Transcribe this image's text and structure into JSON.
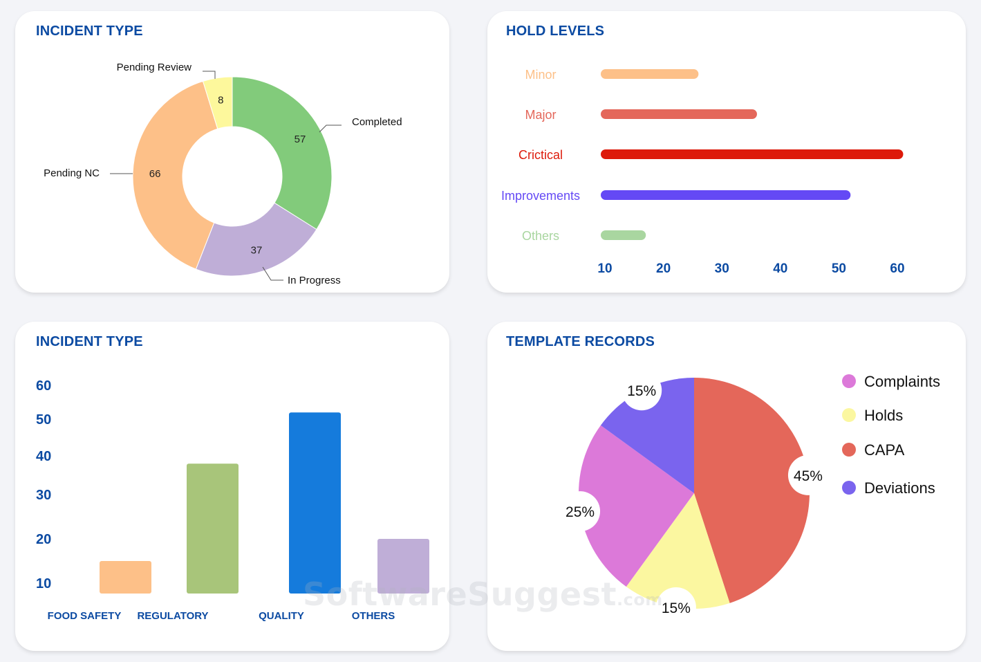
{
  "charts": {
    "incident_donut": {
      "title": "INCIDENT TYPE",
      "chart_data": {
        "type": "pie",
        "donut": true,
        "title": "INCIDENT TYPE",
        "slices": [
          {
            "label": "Completed",
            "value": 57,
            "color": "#82cb7b"
          },
          {
            "label": "In Progress",
            "value": 37,
            "color": "#bfaed7"
          },
          {
            "label": "Pending NC",
            "value": 66,
            "color": "#fdc088"
          },
          {
            "label": "Pending Review",
            "value": 8,
            "color": "#fdf89c"
          }
        ]
      }
    },
    "hold_levels": {
      "title": "HOLD LEVELS",
      "chart_data": {
        "type": "bar",
        "orientation": "horizontal",
        "title": "HOLD LEVELS",
        "categories": [
          "Minor",
          "Major",
          "Crictical",
          "Improvements",
          "Others"
        ],
        "values": [
          26,
          36,
          61,
          52,
          17
        ],
        "colors": [
          "#fdc088",
          "#e4675a",
          "#dd1a0a",
          "#6449f5",
          "#a9d6a0"
        ],
        "xlim": [
          10,
          60
        ],
        "xticks": [
          10,
          20,
          30,
          40,
          50,
          60
        ]
      }
    },
    "incident_bar": {
      "title": "INCIDENT TYPE",
      "chart_data": {
        "type": "bar",
        "title": "INCIDENT TYPE",
        "categories": [
          "FOOD SAFETY",
          "REGULATORY",
          "QUALITY",
          "OTHERS"
        ],
        "values": [
          15,
          38,
          52,
          20
        ],
        "colors": [
          "#fdc088",
          "#a8c57a",
          "#157bdc",
          "#bfaed7"
        ],
        "ylim": [
          10,
          60
        ],
        "yticks": [
          10,
          20,
          30,
          40,
          50,
          60
        ]
      }
    },
    "template_records": {
      "title": "TEMPLATE RECORDS",
      "chart_data": {
        "type": "pie",
        "title": "TEMPLATE RECORDS",
        "slices": [
          {
            "label": "CAPA",
            "value": 45,
            "display": "45%",
            "color": "#e4675a"
          },
          {
            "label": "Holds",
            "value": 15,
            "display": "15%",
            "color": "#fbf7a0"
          },
          {
            "label": "Complaints",
            "value": 25,
            "display": "25%",
            "color": "#dc79d9"
          },
          {
            "label": "Deviations",
            "value": 15,
            "display": "15%",
            "color": "#7a64ee"
          }
        ],
        "legend": [
          "Complaints",
          "Holds",
          "CAPA",
          "Deviations"
        ],
        "legend_position": "right"
      }
    }
  },
  "watermark": {
    "main": "SoftwareSuggest",
    "suffix": ".com"
  }
}
